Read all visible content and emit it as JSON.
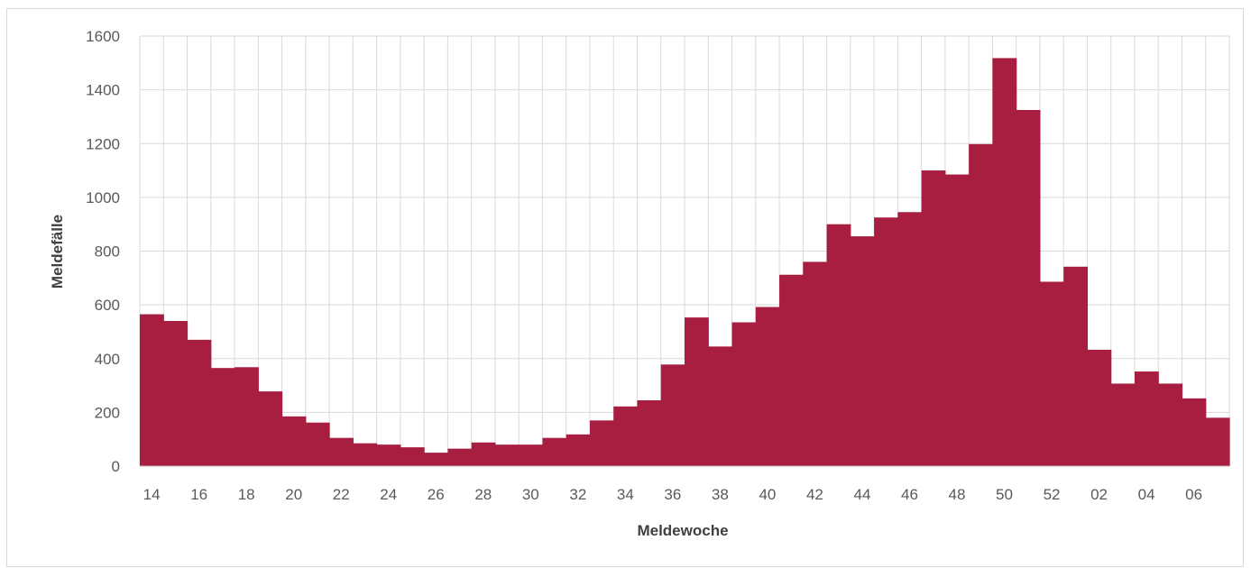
{
  "chart_data": {
    "type": "area",
    "title": "",
    "xlabel": "Meldewoche",
    "ylabel": "Meldefälle",
    "ylim": [
      0,
      1600
    ],
    "yticks": [
      0,
      200,
      400,
      600,
      800,
      1000,
      1200,
      1400,
      1600
    ],
    "grid": true,
    "legend": "none",
    "color": "#a81e40",
    "categories": [
      "14",
      "15",
      "16",
      "17",
      "18",
      "19",
      "20",
      "21",
      "22",
      "23",
      "24",
      "25",
      "26",
      "27",
      "28",
      "29",
      "30",
      "31",
      "32",
      "33",
      "34",
      "35",
      "36",
      "37",
      "38",
      "39",
      "40",
      "41",
      "42",
      "43",
      "44",
      "45",
      "46",
      "47",
      "48",
      "49",
      "50",
      "51",
      "52",
      "01",
      "02",
      "03",
      "04",
      "05",
      "06",
      "07"
    ],
    "tick_labels": [
      "14",
      "16",
      "18",
      "20",
      "22",
      "24",
      "26",
      "28",
      "30",
      "32",
      "34",
      "36",
      "38",
      "40",
      "42",
      "44",
      "46",
      "48",
      "50",
      "52",
      "02",
      "04",
      "06"
    ],
    "values": [
      565,
      540,
      470,
      365,
      368,
      278,
      185,
      162,
      105,
      85,
      80,
      70,
      50,
      65,
      88,
      80,
      80,
      105,
      118,
      170,
      222,
      245,
      378,
      553,
      445,
      535,
      592,
      712,
      760,
      900,
      855,
      925,
      945,
      1100,
      1085,
      1198,
      1518,
      1325,
      686,
      742,
      433,
      307,
      352,
      307,
      252,
      180
    ]
  }
}
